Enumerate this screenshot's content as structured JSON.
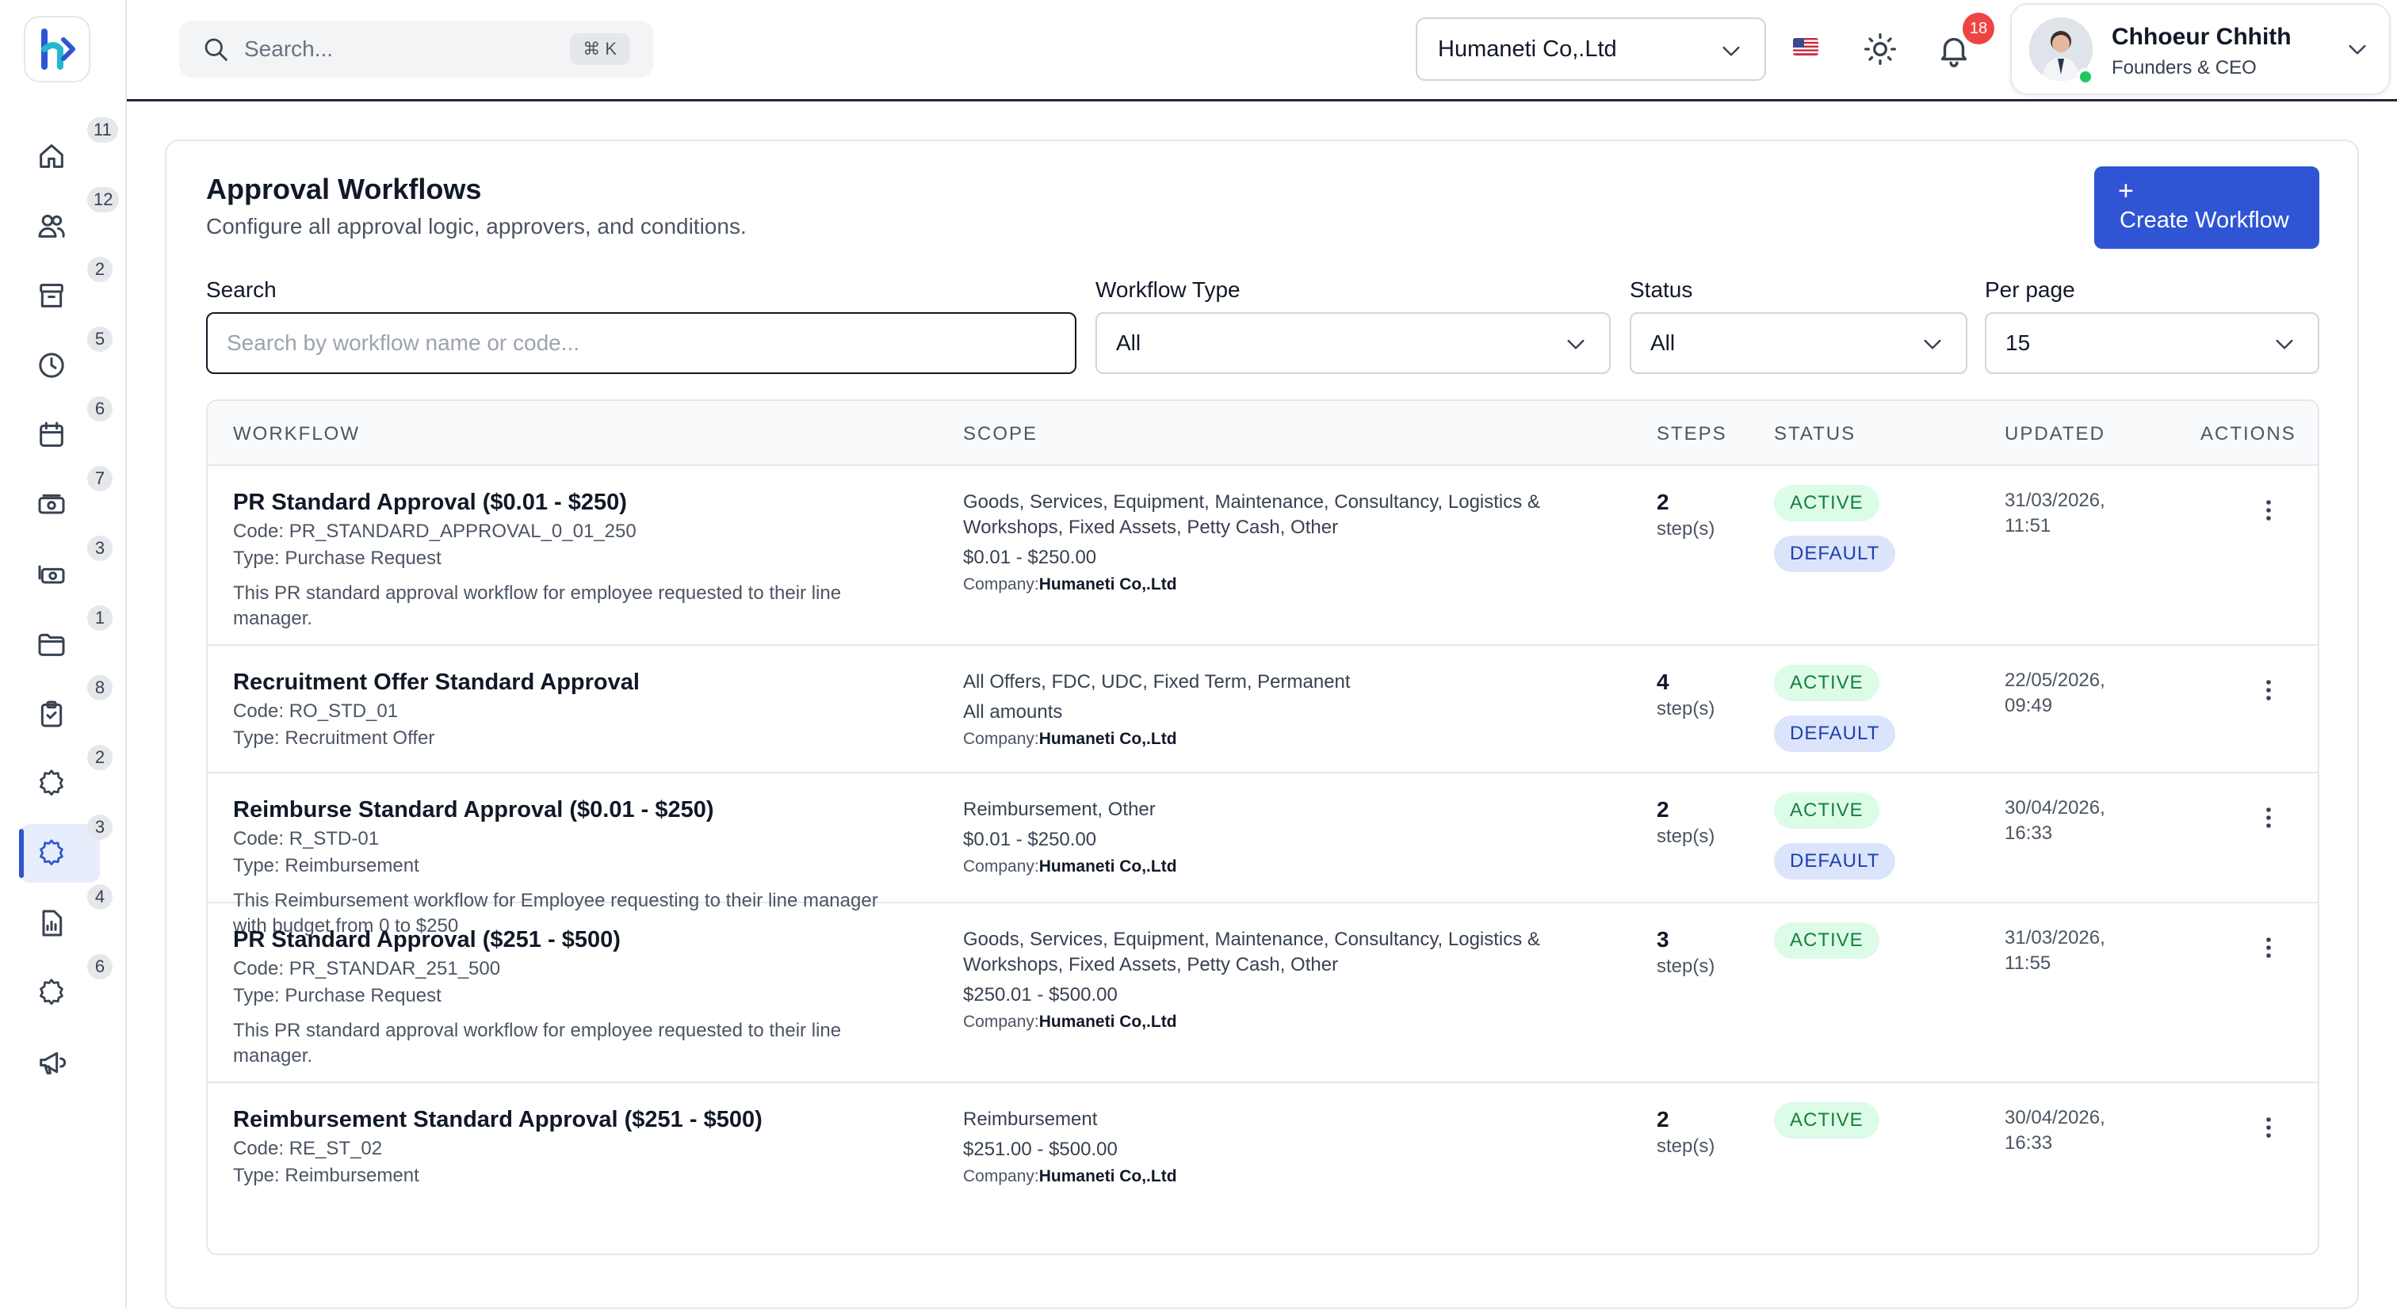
{
  "header": {
    "search_placeholder": "Search...",
    "shortcut": "⌘ K",
    "company": "Humaneti Co,.Ltd",
    "notification_count": "18",
    "user": {
      "name": "Chhoeur Chhith",
      "role": "Founders & CEO"
    }
  },
  "sidebar": {
    "items": [
      {
        "icon": "home-icon",
        "badge": "11"
      },
      {
        "icon": "users-icon",
        "badge": "12"
      },
      {
        "icon": "archive-icon",
        "badge": "2"
      },
      {
        "icon": "clock-icon",
        "badge": "5"
      },
      {
        "icon": "calendar-icon",
        "badge": "6"
      },
      {
        "icon": "cash-icon",
        "badge": "7"
      },
      {
        "icon": "cash-stack-icon",
        "badge": "3"
      },
      {
        "icon": "folder-icon",
        "badge": "1"
      },
      {
        "icon": "clipboard-check-icon",
        "badge": "8"
      },
      {
        "icon": "settings-icon",
        "badge": "2"
      },
      {
        "icon": "settings-active-icon",
        "badge": "3"
      },
      {
        "icon": "report-icon",
        "badge": "4"
      },
      {
        "icon": "gear-icon",
        "badge": "6"
      },
      {
        "icon": "megaphone-icon",
        "badge": ""
      }
    ],
    "active_index": 10
  },
  "page": {
    "title": "Approval Workflows",
    "subtitle": "Configure all approval logic, approvers, and conditions.",
    "create_button": "Create Workflow"
  },
  "filters": {
    "search_label": "Search",
    "search_placeholder": "Search by workflow name or code...",
    "type_label": "Workflow Type",
    "type_value": "All",
    "status_label": "Status",
    "status_value": "All",
    "per_page_label": "Per page",
    "per_page_value": "15"
  },
  "table": {
    "headers": {
      "workflow": "WORKFLOW",
      "scope": "SCOPE",
      "steps": "STEPS",
      "status": "STATUS",
      "updated": "UPDATED",
      "actions": "ACTIONS"
    },
    "rows": [
      {
        "name": "PR Standard Approval ($0.01 - $250)",
        "code": "Code: PR_STANDARD_APPROVAL_0_01_250",
        "type": "Type: Purchase Request",
        "description": "This PR standard approval workflow for employee requested to their line manager.",
        "scope_categories": "Goods, Services, Equipment, Maintenance, Consultancy, Logistics & Workshops, Fixed Assets, Petty Cash, Other",
        "scope_range": "$0.01 - $250.00",
        "company_label": "Company:",
        "company": "Humaneti Co,.Ltd",
        "steps": "2",
        "steps_label": "step(s)",
        "status": "ACTIVE",
        "default": "DEFAULT",
        "updated_date": "31/03/2026,",
        "updated_time": "11:51"
      },
      {
        "name": "Recruitment Offer Standard Approval",
        "code": "Code: RO_STD_01",
        "type": "Type: Recruitment Offer",
        "description": "",
        "scope_categories": "All Offers, FDC, UDC, Fixed Term, Permanent",
        "scope_range": "All amounts",
        "company_label": "Company:",
        "company": "Humaneti Co,.Ltd",
        "steps": "4",
        "steps_label": "step(s)",
        "status": "ACTIVE",
        "default": "DEFAULT",
        "updated_date": "22/05/2026,",
        "updated_time": "09:49"
      },
      {
        "name": "Reimburse Standard Approval ($0.01 - $250)",
        "code": "Code: R_STD-01",
        "type": "Type: Reimbursement",
        "description": "This Reimbursement workflow for Employee requesting to their line manager with budget from 0 to $250",
        "scope_categories": "Reimbursement, Other",
        "scope_range": "$0.01 - $250.00",
        "company_label": "Company:",
        "company": "Humaneti Co,.Ltd",
        "steps": "2",
        "steps_label": "step(s)",
        "status": "ACTIVE",
        "default": "DEFAULT",
        "updated_date": "30/04/2026,",
        "updated_time": "16:33"
      },
      {
        "name": "PR Standard Approval ($251 - $500)",
        "code": "Code: PR_STANDAR_251_500",
        "type": "Type: Purchase Request",
        "description": "This PR standard approval workflow for employee requested to their line manager.",
        "scope_categories": "Goods, Services, Equipment, Maintenance, Consultancy, Logistics & Workshops, Fixed Assets, Petty Cash, Other",
        "scope_range": "$250.01 - $500.00",
        "company_label": "Company:",
        "company": "Humaneti Co,.Ltd",
        "steps": "3",
        "steps_label": "step(s)",
        "status": "ACTIVE",
        "default": "",
        "updated_date": "31/03/2026,",
        "updated_time": "11:55"
      },
      {
        "name": "Reimbursement Standard Approval ($251 - $500)",
        "code": "Code: RE_ST_02",
        "type": "Type: Reimbursement",
        "description": "",
        "scope_categories": "Reimbursement",
        "scope_range": "$251.00 - $500.00",
        "company_label": "Company:",
        "company": "Humaneti Co,.Ltd",
        "steps": "2",
        "steps_label": "step(s)",
        "status": "ACTIVE",
        "default": "",
        "updated_date": "30/04/2026,",
        "updated_time": "16:33"
      }
    ]
  },
  "colors": {
    "primary": "#2f55d4",
    "active_bg": "#dcfce7",
    "active_text": "#15803d",
    "default_bg": "#dbe4fb",
    "default_text": "#1e3fae",
    "notification": "#ef4444"
  }
}
